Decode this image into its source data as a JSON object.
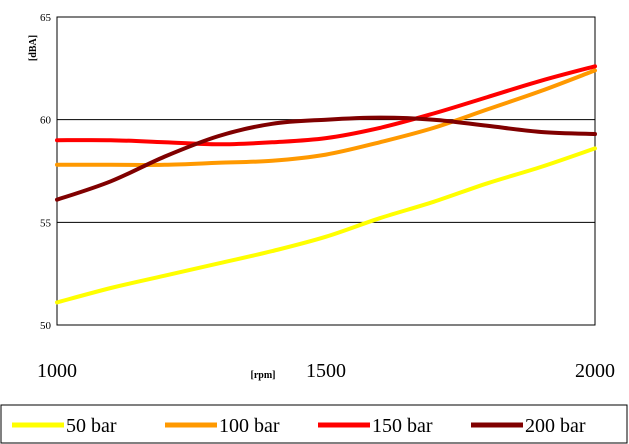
{
  "chart_data": {
    "type": "line",
    "title": "",
    "xlabel": "[rpm]",
    "ylabel": "[dBA]",
    "xlim": [
      1000,
      2000
    ],
    "ylim": [
      50,
      65
    ],
    "x_ticks": [
      1000,
      1500,
      2000
    ],
    "y_ticks": [
      50,
      55,
      60,
      65
    ],
    "grid": "horizontal",
    "legend_position": "bottom",
    "series": [
      {
        "name": "50 bar",
        "color": "#ffff00",
        "x": [
          1000,
          1100,
          1200,
          1300,
          1400,
          1500,
          1600,
          1700,
          1800,
          1900,
          2000
        ],
        "y": [
          51.1,
          51.8,
          52.4,
          53.0,
          53.6,
          54.3,
          55.2,
          56.0,
          56.9,
          57.7,
          58.6
        ]
      },
      {
        "name": "100 bar",
        "color": "#ff9900",
        "x": [
          1000,
          1100,
          1200,
          1300,
          1400,
          1500,
          1600,
          1700,
          1800,
          1900,
          2000
        ],
        "y": [
          57.8,
          57.8,
          57.8,
          57.9,
          58.0,
          58.3,
          58.9,
          59.6,
          60.5,
          61.4,
          62.4
        ]
      },
      {
        "name": "150 bar",
        "color": "#ff0000",
        "x": [
          1000,
          1100,
          1200,
          1300,
          1400,
          1500,
          1600,
          1700,
          1800,
          1900,
          2000
        ],
        "y": [
          59.0,
          59.0,
          58.9,
          58.8,
          58.9,
          59.1,
          59.6,
          60.3,
          61.1,
          61.9,
          62.6
        ]
      },
      {
        "name": "200 bar",
        "color": "#800000",
        "x": [
          1000,
          1100,
          1200,
          1300,
          1400,
          1500,
          1600,
          1700,
          1800,
          1900,
          2000
        ],
        "y": [
          56.1,
          57.0,
          58.2,
          59.2,
          59.8,
          60.0,
          60.1,
          60.0,
          59.7,
          59.4,
          59.3
        ]
      }
    ]
  }
}
